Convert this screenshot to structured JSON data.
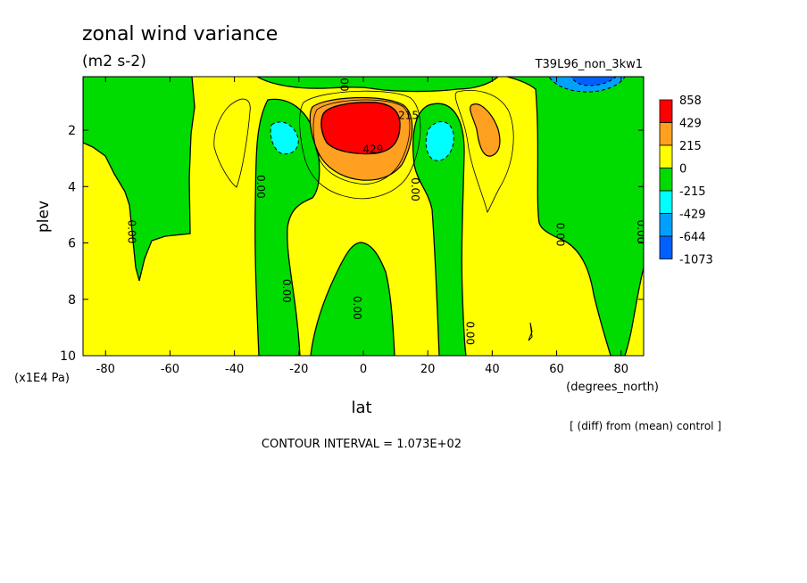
{
  "chart_data": {
    "type": "heatmap",
    "title": "zonal wind variance",
    "subtitle": "(m2 s-2)",
    "run_label": "T39L96_non_3kw1",
    "xlabel": "lat",
    "x_units_label": "(degrees_north)",
    "ylabel": "plev",
    "y_units_label": "(x1E4 Pa)",
    "x_ticks": [
      -80,
      -60,
      -40,
      -20,
      0,
      20,
      40,
      60,
      80
    ],
    "y_ticks": [
      2,
      4,
      6,
      8,
      10
    ],
    "xlim": [
      -87,
      87
    ],
    "ylim": [
      0.1,
      10
    ],
    "y_inverted": true,
    "footer_note": "[ (diff) from (mean) control ]",
    "contour_interval_text": "CONTOUR INTERVAL = 1.073E+02",
    "legend": {
      "levels": [
        "858",
        "429",
        "215",
        "0",
        "-215",
        "-429",
        "-644",
        "-1073"
      ],
      "colors": [
        "#ff0000",
        "#ffa020",
        "#ffff00",
        "#00dc00",
        "#00ffff",
        "#00a0ff",
        "#0060ff"
      ]
    },
    "contour_labels": [
      {
        "text": "0.00",
        "lat": -73,
        "plev": 5.6
      },
      {
        "text": "0.00",
        "lat": -33,
        "plev": 4.0
      },
      {
        "text": "0.00",
        "lat": -25,
        "plev": 7.7
      },
      {
        "text": "0.00",
        "lat": -3,
        "plev": 8.3
      },
      {
        "text": "0.00",
        "lat": 15,
        "plev": 4.1
      },
      {
        "text": "0.00",
        "lat": 32,
        "plev": 9.2
      },
      {
        "text": "0.00",
        "lat": 60,
        "plev": 5.7
      },
      {
        "text": "0.00",
        "lat": 85,
        "plev": 5.6
      },
      {
        "text": "0.00",
        "lat": -7,
        "plev": 0.2
      },
      {
        "text": "215",
        "lat": 14,
        "plev": 1.6
      },
      {
        "text": "429",
        "lat": 3,
        "plev": 2.8
      }
    ],
    "regions": [
      {
        "name": "cyan-south",
        "value": -300,
        "lat": -25,
        "plev": 2.2
      },
      {
        "name": "cyan-north",
        "value": -300,
        "lat": 25,
        "plev": 2.4
      },
      {
        "name": "orange-north",
        "value": 300,
        "lat": 43,
        "plev": 2.0
      },
      {
        "name": "red-core",
        "value": 700,
        "lat": 0,
        "plev": 1.8
      },
      {
        "name": "blue-top-north",
        "value": -500,
        "lat": 70,
        "plev": 0.2
      }
    ]
  }
}
